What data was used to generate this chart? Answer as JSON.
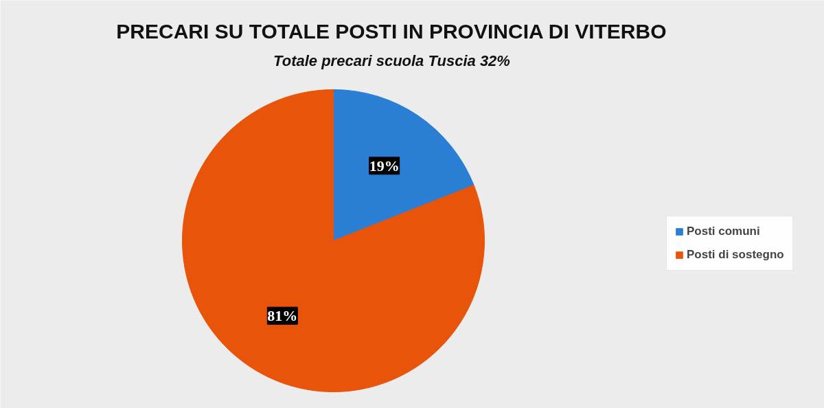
{
  "chart_data": {
    "type": "pie",
    "title": "PRECARI SU TOTALE POSTI IN PROVINCIA DI VITERBO",
    "subtitle": "Totale precari scuola Tuscia 32%",
    "categories": [
      "Posti comuni",
      "Posti di sostegno"
    ],
    "values": [
      19,
      81
    ],
    "colors": [
      "#2a7fd4",
      "#e8540a"
    ],
    "value_labels": [
      "19%",
      "81%"
    ],
    "legend": "right"
  }
}
